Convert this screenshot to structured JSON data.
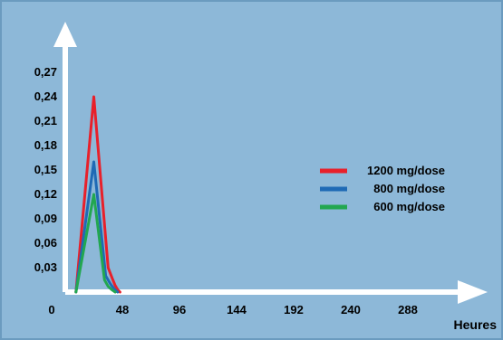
{
  "chart_data": {
    "type": "line",
    "title": "",
    "xlabel": "Heures",
    "ylabel": "",
    "xlim": [
      0,
      300
    ],
    "ylim": [
      0,
      0.3
    ],
    "x_ticks": [
      "0",
      "48",
      "96",
      "144",
      "192",
      "240",
      "288"
    ],
    "x_tick_values": [
      0,
      48,
      96,
      144,
      192,
      240,
      288
    ],
    "y_ticks": [
      "0,03",
      "0,06",
      "0,09",
      "0,12",
      "0,15",
      "0,18",
      "0,21",
      "0,24",
      "0,27"
    ],
    "y_tick_values": [
      0.03,
      0.06,
      0.09,
      0.12,
      0.15,
      0.18,
      0.21,
      0.24,
      0.27
    ],
    "grid": false,
    "legend_position": "right",
    "series": [
      {
        "name": "1200 mg/dose",
        "color": "#e8202a",
        "x": [
          9,
          24,
          36,
          40,
          42,
          44,
          46
        ],
        "y": [
          0,
          0.24,
          0.03,
          0.015,
          0.008,
          0.003,
          0
        ]
      },
      {
        "name": "800 mg/dose",
        "color": "#1f6ab5",
        "x": [
          9,
          24,
          34,
          38,
          41,
          44
        ],
        "y": [
          0,
          0.16,
          0.02,
          0.01,
          0.004,
          0
        ]
      },
      {
        "name": "600 mg/dose",
        "color": "#22a750",
        "x": [
          9,
          24,
          33,
          36,
          39,
          42
        ],
        "y": [
          0,
          0.12,
          0.015,
          0.007,
          0.003,
          0
        ]
      }
    ]
  },
  "colors": {
    "panel": "#8db8d8",
    "panel_border": "#6b9bbf",
    "axis": "#ffffff"
  }
}
